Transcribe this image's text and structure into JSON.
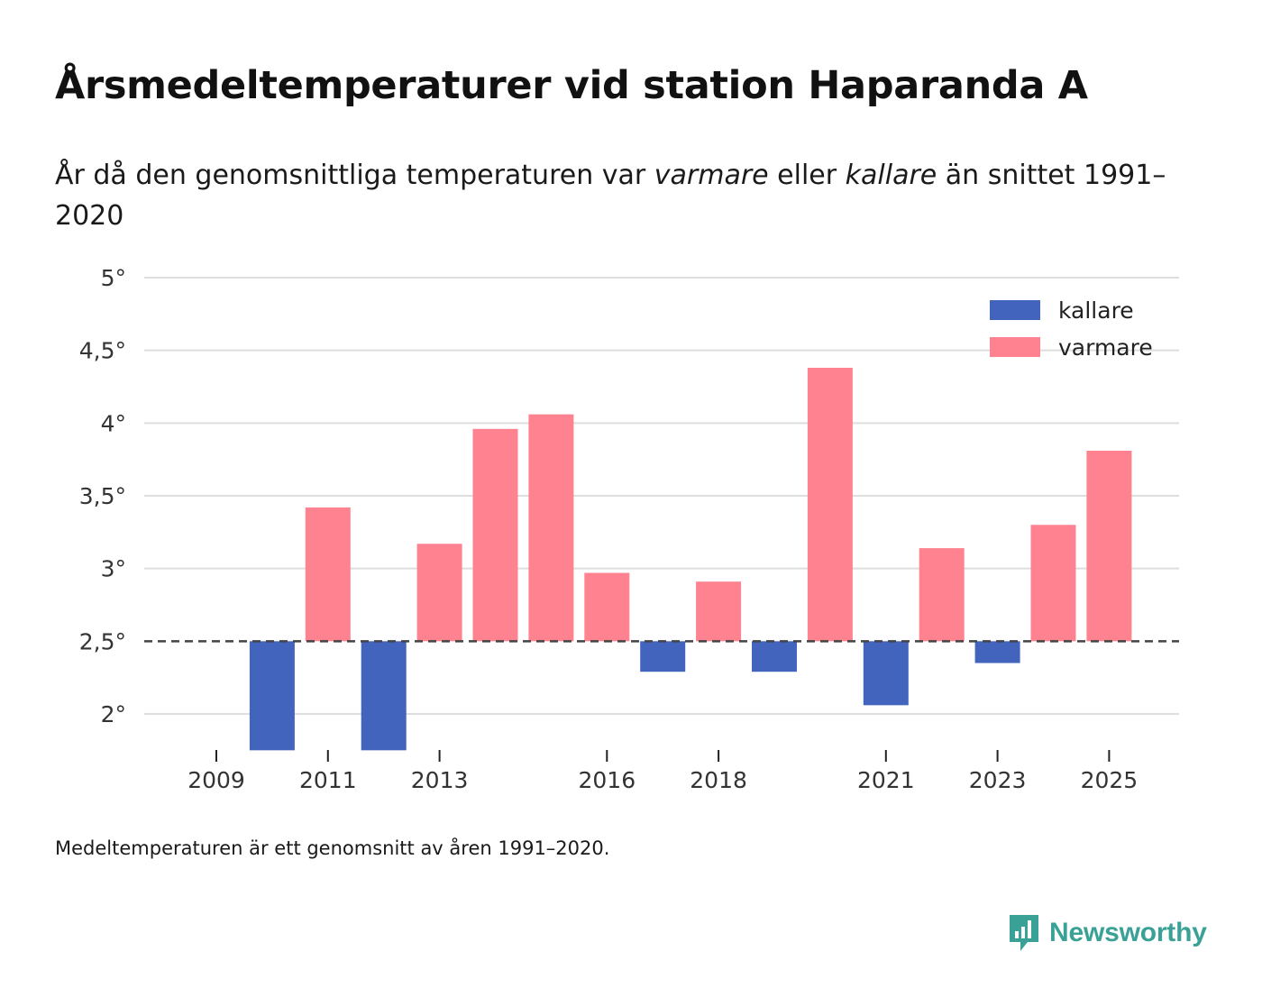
{
  "title": "Årsmedeltemperaturer vid station Haparanda A",
  "subtitle": {
    "part1": "År då den genomsnittliga temperaturen var ",
    "warm_word": "varmare",
    "part2": " eller ",
    "cold_word": "kallare",
    "part3": " än snittet 1991–2020"
  },
  "footnote": "Medeltemperaturen är ett genomsnitt av åren 1991–2020.",
  "logo": {
    "text": "Newsworthy",
    "icon": "newsworthy-logo-icon"
  },
  "colors": {
    "warm": "#ff8291",
    "cold": "#4264bd",
    "grid": "#dedede",
    "baseline": "#444444",
    "logo": "#3aa197"
  },
  "chart_data": {
    "type": "bar",
    "title": "Årsmedeltemperaturer vid station Haparanda A",
    "baseline": 2.5,
    "ylim": [
      1.75,
      5.0
    ],
    "yticks": [
      2,
      2.5,
      3,
      3.5,
      4,
      4.5,
      5
    ],
    "ytick_labels": [
      "2°",
      "2,5°",
      "3°",
      "3,5°",
      "4°",
      "4,5°",
      "5°"
    ],
    "xticks": [
      "2009",
      "2011",
      "2013",
      "2016",
      "2018",
      "2021",
      "2023",
      "2025"
    ],
    "legend": [
      {
        "label": "kallare",
        "color": "#4264bd"
      },
      {
        "label": "varmare",
        "color": "#ff8291"
      }
    ],
    "legend_position": "top-right",
    "categories": [
      "2009",
      "2010",
      "2011",
      "2012",
      "2013",
      "2014",
      "2015",
      "2016",
      "2017",
      "2018",
      "2019",
      "2020",
      "2021",
      "2022",
      "2023",
      "2024",
      "2025"
    ],
    "values": [
      null,
      1.75,
      3.42,
      1.75,
      3.17,
      3.96,
      4.06,
      2.97,
      2.29,
      2.91,
      2.29,
      4.38,
      2.06,
      3.14,
      2.35,
      3.3,
      3.81
    ]
  }
}
